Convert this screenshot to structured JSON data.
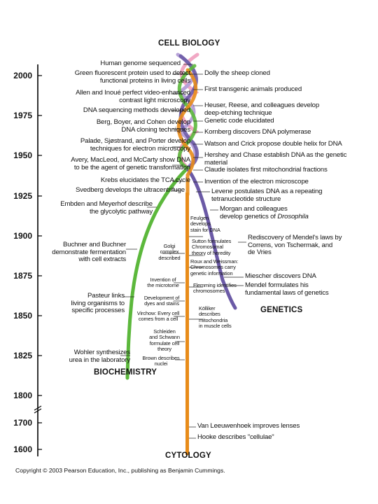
{
  "labels": {
    "cell_biology": "CELL BIOLOGY",
    "genetics": "GENETICS",
    "biochemistry": "BIOCHEMISTRY",
    "cytology": "CYTOLOGY"
  },
  "years": [
    "2000",
    "1975",
    "1950",
    "1925",
    "1900",
    "1875",
    "1850",
    "1825",
    "1800",
    "1700",
    "1600"
  ],
  "events": {
    "human_genome": "Human genome sequenced",
    "gfp": "Green fluorescent protein used to detect\nfunctional proteins in living cells",
    "allen_inoue": "Allen and Inoué perfect video-enhanced\ncontrast light microscopy",
    "dna_sequencing": "DNA sequencing methods developed",
    "berg": "Berg, Boyer, and Cohen develop\nDNA cloning techniques",
    "palade": "Palade, Sjøstrand, and Porter develop\ntechniques for electron microscopy",
    "avery": "Avery, MacLeod, and McCarty show DNA\nto be the agent of genetic transformation",
    "krebs": "Krebs elucidates the TCA cycle",
    "svedberg": "Svedberg develops the ultracentrifuge",
    "embden": "Embden and Meyerhof describe\nthe glycolytic pathway",
    "buchner": "Buchner and Buchner\ndemonstrate fermentation\nwith cell extracts",
    "pasteur": "Pasteur links\nliving organisms to\nspecific processes",
    "wohler": "Wohler synthesizes\nurea in the laboratory",
    "dolly": "Dolly the sheep cloned",
    "transgenic": "First transgenic animals produced",
    "heuser": "Heuser, Reese, and colleagues develop\ndeep-etching technique",
    "genetic_code": "Genetic code elucidated",
    "kornberg": "Kornberg discovers DNA polymerase",
    "watson": "Watson and Crick propose double helix for DNA",
    "hershey": "Hershey and Chase establish DNA as the genetic\nmaterial",
    "claude": "Claude isolates first mitochondrial fractions",
    "em_invention": "Invention of the electron microscope",
    "levene": "Levene postulates DNA as a repeating\ntetranucleotide structure",
    "morgan": "Morgan and colleagues\ndevelop genetics of ",
    "drosophila": "Drosophila",
    "mendel_rediscovery": "Rediscovery of Mendel's laws by\nCorrens, von Tschermak, and\nde Vries",
    "miescher": "Miescher discovers DNA",
    "mendel_laws": "Mendel formulates his\nfundamental laws of genetics",
    "feulgen": "Feulgen\ndevelops\nstain for DNA",
    "sutton": "Sutton formulates\nChromosomal\ntheory of heredity",
    "roux": "Roux and Weissman:\nChromosomes carry\ngenetic information",
    "flemming": "Flemming identifies\nchromosomes",
    "kolliker": "Kölliker\ndescribes\nmitochondria\nin muscle cells",
    "golgi": "Golgi\ncomplex\ndescribed",
    "microtome": "Invention of\nthe microtome",
    "dyes": "Development of\ndyes and stains",
    "virchow": "Virchow: Every cell\ncomes from a cell",
    "schleiden": "Schleiden\nand Schwann\nformulate cell\ntheory",
    "brown": "Brown describes\nnuclei",
    "leeuwenhoek": "Van Leeuwenhoek improves lenses",
    "hooke": "Hooke describes \"cellulae\""
  },
  "copyright": "Copyright © 2003 Pearson Education, Inc., publishing as Benjamin Cummings.",
  "colors": {
    "cytology": "#e88c1a",
    "biochemistry": "#5cb83c",
    "genetics": "#6b5aa6",
    "helix_pink": "#f1a8c4",
    "helix_lavender": "#b7a2d8",
    "axis": "#000000"
  }
}
